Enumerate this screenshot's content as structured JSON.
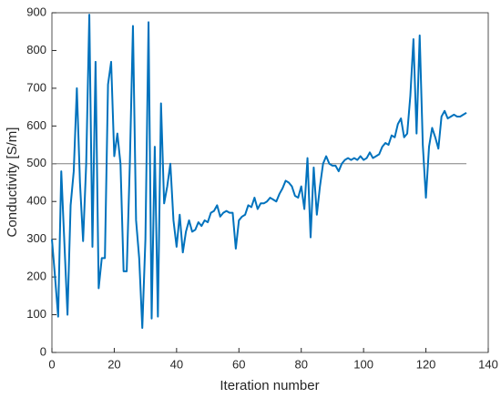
{
  "chart_data": {
    "type": "line",
    "x_label": "Iteration number",
    "y_label": "Conductivity [S/m]",
    "x": [
      0,
      1,
      2,
      3,
      4,
      5,
      6,
      7,
      8,
      9,
      10,
      11,
      12,
      13,
      14,
      15,
      16,
      17,
      18,
      19,
      20,
      21,
      22,
      23,
      24,
      25,
      26,
      27,
      28,
      29,
      30,
      31,
      32,
      33,
      34,
      35,
      36,
      37,
      38,
      39,
      40,
      41,
      42,
      43,
      44,
      45,
      46,
      47,
      48,
      49,
      50,
      51,
      52,
      53,
      54,
      55,
      56,
      57,
      58,
      59,
      60,
      61,
      62,
      63,
      64,
      65,
      66,
      67,
      68,
      69,
      70,
      71,
      72,
      73,
      74,
      75,
      76,
      77,
      78,
      79,
      80,
      81,
      82,
      83,
      84,
      85,
      86,
      87,
      88,
      89,
      90,
      91,
      92,
      93,
      94,
      95,
      96,
      97,
      98,
      99,
      100,
      101,
      102,
      103,
      104,
      105,
      106,
      107,
      108,
      109,
      110,
      111,
      112,
      113,
      114,
      115,
      116,
      117,
      118,
      119,
      120,
      121,
      122,
      123,
      124,
      125,
      126,
      127,
      128,
      129,
      130,
      131,
      132,
      133
    ],
    "series": [
      {
        "color": "#0072bd",
        "values": [
          300,
          200,
          95,
          480,
          290,
          100,
          390,
          480,
          700,
          450,
          295,
          500,
          895,
          280,
          770,
          170,
          250,
          250,
          710,
          770,
          520,
          580,
          500,
          215,
          215,
          500,
          865,
          350,
          250,
          65,
          300,
          875,
          90,
          545,
          95,
          660,
          395,
          440,
          500,
          350,
          280,
          365,
          265,
          320,
          350,
          320,
          325,
          345,
          335,
          350,
          345,
          370,
          375,
          390,
          360,
          370,
          375,
          370,
          370,
          275,
          350,
          360,
          365,
          390,
          385,
          410,
          380,
          395,
          395,
          400,
          410,
          405,
          400,
          420,
          435,
          455,
          450,
          440,
          415,
          410,
          440,
          380,
          515,
          305,
          490,
          365,
          440,
          500,
          520,
          500,
          495,
          495,
          480,
          500,
          510,
          515,
          510,
          515,
          510,
          520,
          510,
          515,
          530,
          515,
          520,
          525,
          545,
          555,
          550,
          575,
          570,
          605,
          620,
          570,
          580,
          680,
          830,
          580,
          840,
          550,
          410,
          545,
          595,
          570,
          540,
          625,
          640,
          620,
          625,
          630,
          625,
          625,
          630,
          635
        ]
      }
    ],
    "hline": {
      "y": 500,
      "x": [
        0,
        133
      ],
      "color": "#808080"
    },
    "xlim": [
      0,
      140
    ],
    "xticks": [
      0,
      20,
      40,
      60,
      80,
      100,
      120,
      140
    ],
    "ylim": [
      0,
      900
    ],
    "yticks": [
      0,
      100,
      200,
      300,
      400,
      500,
      600,
      700,
      800,
      900
    ]
  }
}
